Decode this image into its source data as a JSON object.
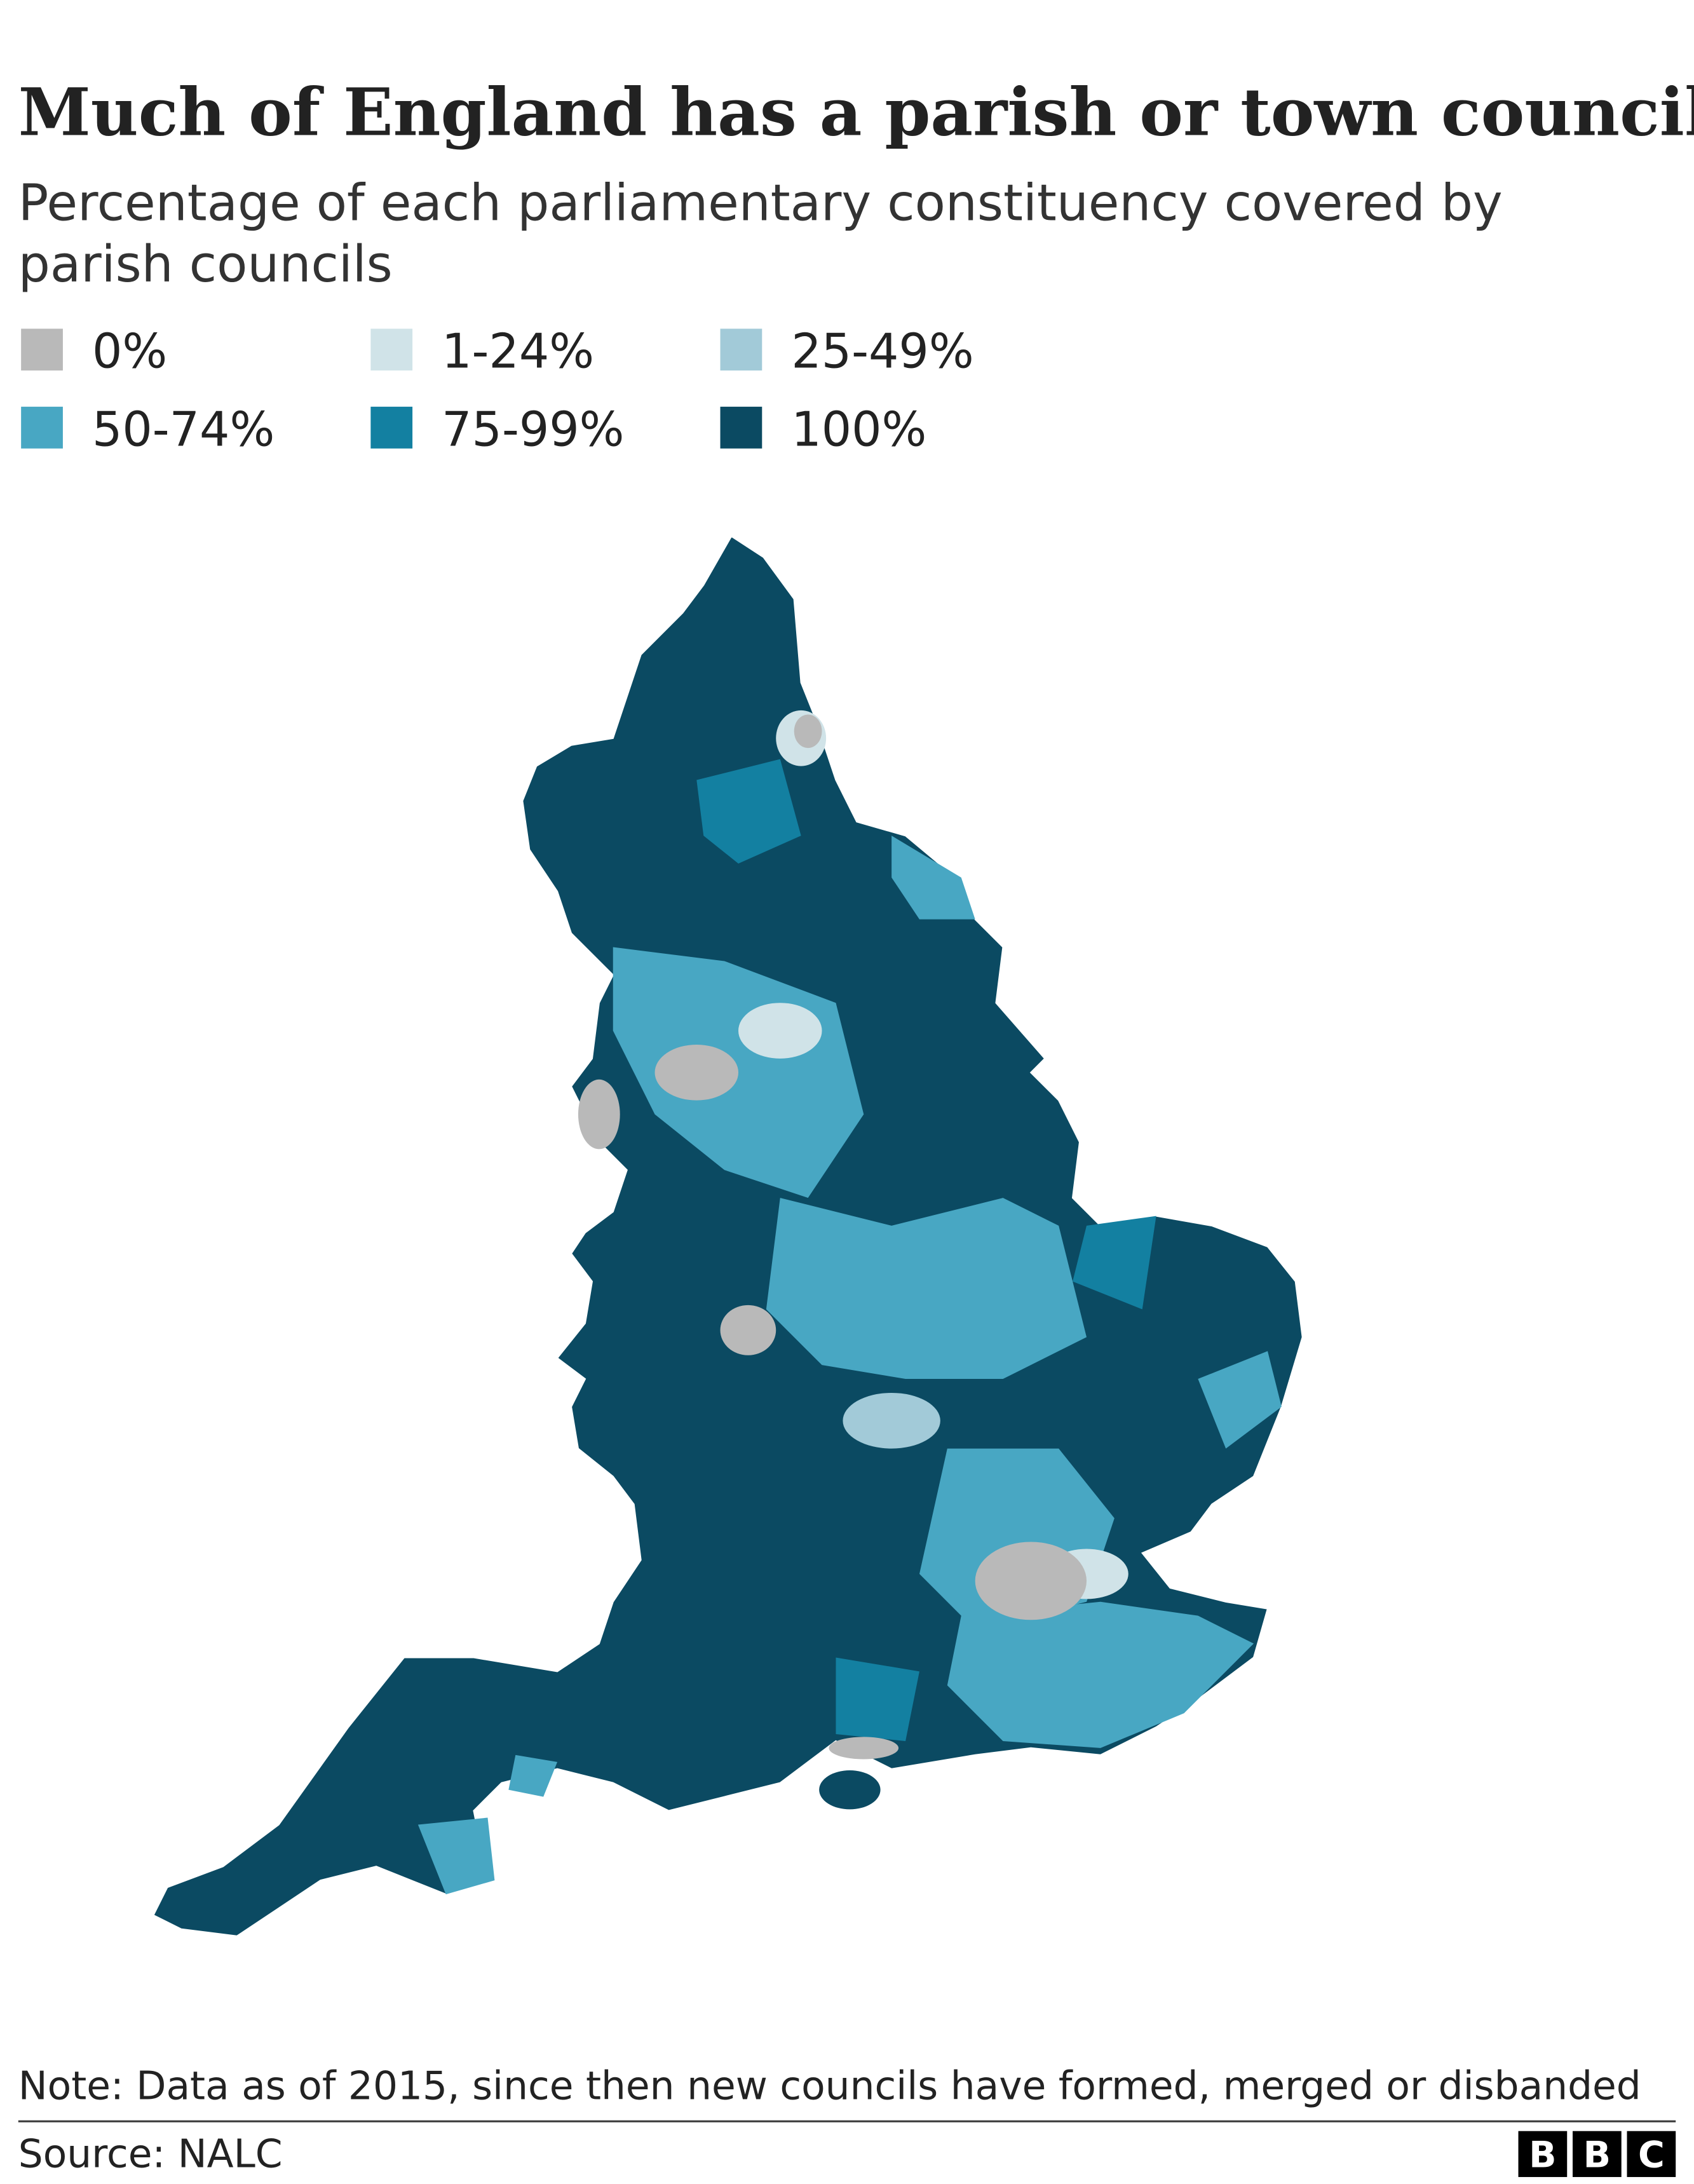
{
  "header": {
    "title": "Much of England has a parish or town council",
    "subtitle_lines": [
      "Percentage of each parliamentary constituency covered by",
      "parish councils"
    ]
  },
  "legend": [
    {
      "label": "0%",
      "color": "#b9b9b9"
    },
    {
      "label": "1-24%",
      "color": "#d0e3e8"
    },
    {
      "label": "25-49%",
      "color": "#a2cad8"
    },
    {
      "label": "50-74%",
      "color": "#48a7c3"
    },
    {
      "label": "75-99%",
      "color": "#1380a1"
    },
    {
      "label": "100%",
      "color": "#0b4a62"
    }
  ],
  "footer": {
    "note": "Note: Data as of 2015, since then new councils have formed, merged or disbanded",
    "source": "Source: NALC"
  },
  "logo": [
    "B",
    "B",
    "C"
  ]
}
